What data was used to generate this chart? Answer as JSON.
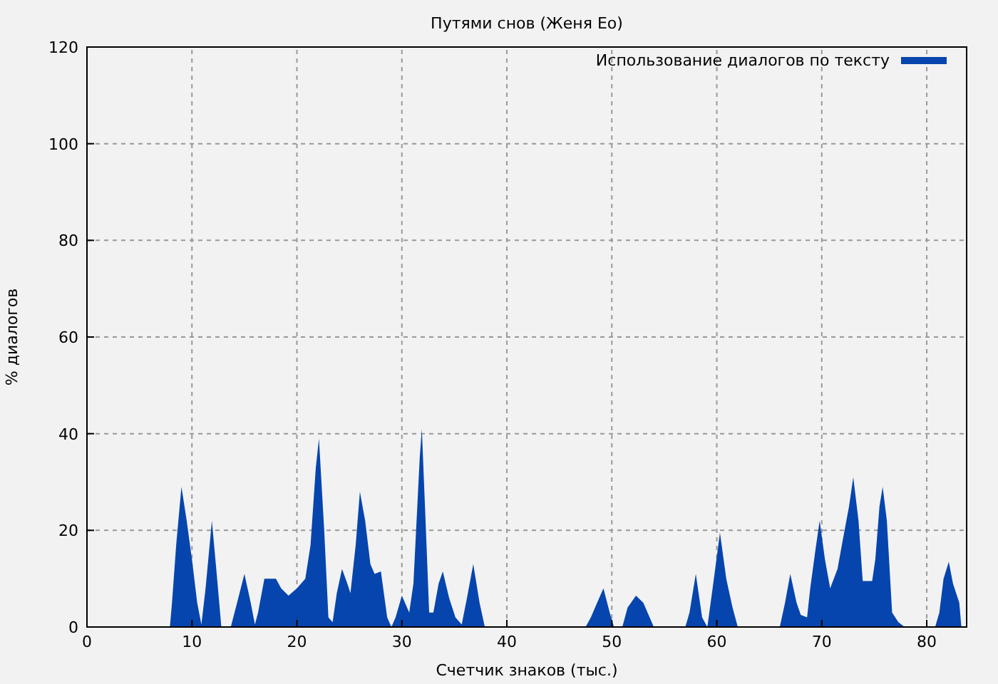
{
  "chart_data": {
    "type": "area",
    "title": "Путями снов (Женя Ео)",
    "xlabel": "Счетчик знаков (тыс.)",
    "ylabel": "% диалогов",
    "xlim": [
      0,
      83.8
    ],
    "ylim": [
      0,
      120
    ],
    "xticks": [
      0,
      10,
      20,
      30,
      40,
      50,
      60,
      70,
      80
    ],
    "yticks": [
      0,
      20,
      40,
      60,
      80,
      100,
      120
    ],
    "grid": true,
    "legend": "top right",
    "series": [
      {
        "name": "Использование диалогов по тексту",
        "color": "#0645ad",
        "x": [
          0,
          7.9,
          8.1,
          8.5,
          9.0,
          9.5,
          10,
          10.5,
          10.9,
          11.3,
          11.9,
          12.4,
          12.8,
          13.7,
          14.3,
          15,
          15.6,
          16,
          16.3,
          16.9,
          18,
          18.5,
          19.2,
          20,
          20.8,
          21.3,
          21.8,
          22.1,
          22.6,
          23,
          23.4,
          23.8,
          24.3,
          24.8,
          25.1,
          25.6,
          26,
          26.5,
          27,
          27.4,
          28,
          28.6,
          29,
          29.4,
          30,
          30.7,
          31.1,
          31.7,
          31.9,
          32.2,
          32.6,
          33,
          33.5,
          33.9,
          34.5,
          35.1,
          35.7,
          36.2,
          36.8,
          37.4,
          37.9,
          47.5,
          48,
          48.6,
          49.2,
          49.8,
          50.2,
          51,
          51.5,
          52.3,
          53,
          53.5,
          54,
          57,
          57.4,
          58,
          58.6,
          59.1,
          59.6,
          60.3,
          60.9,
          61.5,
          62,
          66,
          66.5,
          67,
          67.6,
          68,
          68.6,
          68.9,
          69.4,
          69.8,
          70.3,
          70.8,
          71.5,
          72,
          72.6,
          73,
          73.5,
          73.9,
          74.8,
          75.1,
          75.5,
          75.8,
          76.2,
          76.7,
          77.3,
          77.9,
          80.8,
          81.2,
          81.6,
          82.1,
          82.5,
          83.1,
          83.3
        ],
        "values": [
          0,
          0,
          5,
          17,
          29,
          22,
          14,
          5,
          0.5,
          8,
          22,
          10,
          0,
          0,
          5,
          11,
          5,
          0.5,
          3,
          10,
          10,
          8,
          6.5,
          8,
          10,
          17,
          33,
          39,
          20,
          2,
          1,
          7,
          12,
          9,
          7,
          17,
          28,
          22,
          13,
          11,
          11.5,
          2,
          0,
          2,
          6.5,
          3,
          9,
          35,
          41,
          25,
          3,
          3,
          9,
          11.5,
          6,
          2,
          0.5,
          6,
          13,
          5,
          0,
          0,
          2,
          5,
          8,
          3,
          0,
          0,
          4,
          6.5,
          5,
          2.5,
          0,
          0,
          3,
          11,
          2,
          0,
          8,
          19.5,
          10,
          4,
          0,
          0,
          5,
          11,
          5,
          2.5,
          2,
          8,
          16,
          22,
          14,
          8,
          12,
          18,
          25,
          31,
          22,
          9.5,
          9.5,
          14,
          25,
          29,
          22,
          3,
          1,
          0,
          0,
          3,
          10,
          13.5,
          9,
          5,
          0
        ]
      }
    ]
  }
}
